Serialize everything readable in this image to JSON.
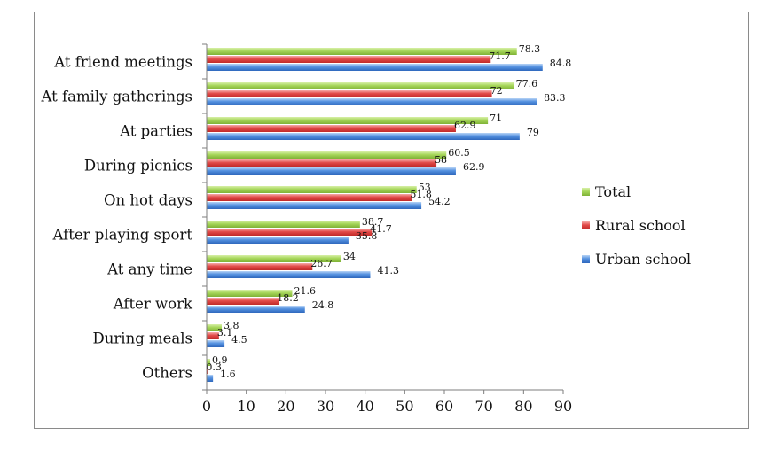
{
  "chart_data": {
    "type": "bar",
    "orientation": "horizontal",
    "title": "",
    "xlabel": "",
    "ylabel": "",
    "xlim": [
      0,
      90
    ],
    "xticks": [
      0,
      10,
      20,
      30,
      40,
      50,
      60,
      70,
      80,
      90
    ],
    "categories": [
      "At friend meetings",
      "At family gatherings",
      "At parties",
      "During picnics",
      "On hot days",
      "After playing sport",
      "At any time",
      "After work",
      "During meals",
      "Others"
    ],
    "series": [
      {
        "name": "Total",
        "color": "#9acd4a",
        "values": [
          78.3,
          77.6,
          71,
          60.5,
          53,
          38.7,
          34,
          21.6,
          3.8,
          0.9
        ]
      },
      {
        "name": "Rural school",
        "color": "#e64545",
        "values": [
          71.7,
          72,
          62.9,
          58,
          51.8,
          41.7,
          26.7,
          18.2,
          3.1,
          0.3
        ]
      },
      {
        "name": "Urban school",
        "color": "#4a86dc",
        "values": [
          84.8,
          83.3,
          79,
          62.9,
          54.2,
          35.8,
          41.3,
          24.8,
          4.5,
          1.6
        ]
      }
    ],
    "legend_position": "right",
    "grid": false
  }
}
